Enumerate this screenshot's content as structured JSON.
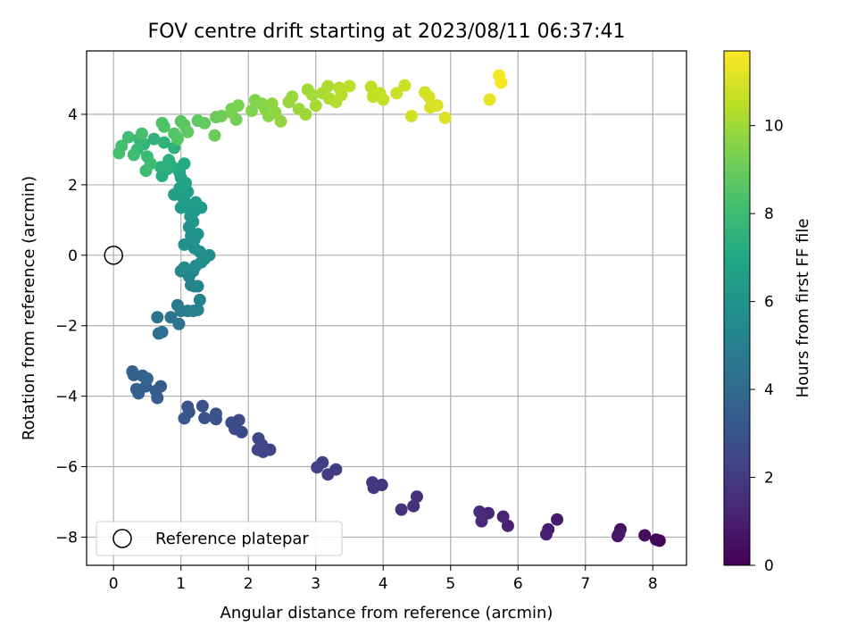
{
  "chart_data": {
    "type": "scatter",
    "title": "FOV centre drift starting at 2023/08/11 06:37:41",
    "xlabel": "Angular distance from reference (arcmin)",
    "ylabel": "Rotation from reference (arcmin)",
    "xlim": [
      -0.4,
      8.5
    ],
    "ylim": [
      -8.8,
      5.8
    ],
    "xticks": [
      0,
      1,
      2,
      3,
      4,
      5,
      6,
      7,
      8
    ],
    "yticks": [
      -8,
      -6,
      -4,
      -2,
      0,
      2,
      4
    ],
    "grid": true,
    "legend": {
      "placement": "lower-left",
      "entries": [
        "Reference platepar"
      ]
    },
    "reference_point": {
      "x": 0,
      "y": 0
    },
    "colorbar": {
      "label": "Hours from first FF file",
      "range": [
        0,
        11.7
      ],
      "ticks": [
        0,
        2,
        4,
        6,
        8,
        10
      ],
      "colormap": "viridis"
    },
    "points": [
      [
        8.1,
        -8.1,
        0.1
      ],
      [
        8.05,
        -8.07,
        0.2
      ],
      [
        7.88,
        -7.95,
        0.35
      ],
      [
        7.52,
        -7.78,
        0.5
      ],
      [
        7.48,
        -7.97,
        0.6
      ],
      [
        7.5,
        -7.9,
        0.7
      ],
      [
        6.58,
        -7.5,
        0.85
      ],
      [
        6.45,
        -7.78,
        0.95
      ],
      [
        6.42,
        -7.92,
        1.0
      ],
      [
        5.85,
        -7.68,
        1.15
      ],
      [
        5.78,
        -7.42,
        1.2
      ],
      [
        5.56,
        -7.32,
        1.3
      ],
      [
        5.46,
        -7.55,
        1.4
      ],
      [
        5.43,
        -7.28,
        1.45
      ],
      [
        4.5,
        -6.85,
        1.6
      ],
      [
        4.45,
        -7.12,
        1.65
      ],
      [
        4.27,
        -7.22,
        1.7
      ],
      [
        3.98,
        -6.52,
        1.8
      ],
      [
        3.86,
        -6.6,
        1.85
      ],
      [
        3.84,
        -6.45,
        1.9
      ],
      [
        3.3,
        -6.08,
        2.0
      ],
      [
        3.18,
        -6.22,
        2.05
      ],
      [
        3.1,
        -5.88,
        2.1
      ],
      [
        3.02,
        -6.02,
        2.15
      ],
      [
        2.32,
        -5.52,
        2.3
      ],
      [
        2.22,
        -5.58,
        2.35
      ],
      [
        2.14,
        -5.52,
        2.4
      ],
      [
        2.15,
        -5.2,
        2.45
      ],
      [
        2.2,
        -5.38,
        2.5
      ],
      [
        1.9,
        -5.02,
        2.6
      ],
      [
        1.8,
        -4.93,
        2.65
      ],
      [
        1.86,
        -4.68,
        2.7
      ],
      [
        1.75,
        -4.75,
        2.75
      ],
      [
        1.52,
        -4.65,
        2.85
      ],
      [
        1.35,
        -4.62,
        2.9
      ],
      [
        1.32,
        -4.28,
        2.95
      ],
      [
        1.52,
        -4.5,
        3.0
      ],
      [
        1.1,
        -4.3,
        3.05
      ],
      [
        1.12,
        -4.45,
        3.1
      ],
      [
        1.05,
        -4.63,
        3.15
      ],
      [
        0.7,
        -3.72,
        3.3
      ],
      [
        0.65,
        -4.05,
        3.35
      ],
      [
        0.63,
        -3.85,
        3.4
      ],
      [
        0.48,
        -3.72,
        3.45
      ],
      [
        0.43,
        -3.42,
        3.5
      ],
      [
        0.37,
        -3.92,
        3.55
      ],
      [
        0.34,
        -3.8,
        3.6
      ],
      [
        0.3,
        -3.4,
        3.65
      ],
      [
        0.28,
        -3.3,
        3.7
      ],
      [
        0.5,
        -3.5,
        3.75
      ],
      [
        0.72,
        -2.18,
        4.2
      ],
      [
        0.67,
        -2.22,
        4.3
      ],
      [
        0.65,
        -1.76,
        4.4
      ],
      [
        0.85,
        -1.76,
        4.5
      ],
      [
        0.97,
        -1.95,
        4.6
      ],
      [
        0.95,
        -1.42,
        4.7
      ],
      [
        1.0,
        -1.58,
        4.8
      ],
      [
        1.1,
        -1.58,
        4.9
      ],
      [
        1.18,
        -1.58,
        5.0
      ],
      [
        1.25,
        -1.55,
        5.05
      ],
      [
        1.28,
        -1.27,
        5.1
      ],
      [
        1.2,
        -0.88,
        5.2
      ],
      [
        1.15,
        -0.85,
        5.25
      ],
      [
        1.25,
        -0.88,
        5.3
      ],
      [
        1.12,
        -0.6,
        5.35
      ],
      [
        1.18,
        -0.45,
        5.4
      ],
      [
        1.0,
        -0.45,
        5.45
      ],
      [
        1.05,
        -0.35,
        5.5
      ],
      [
        1.22,
        -0.3,
        5.55
      ],
      [
        1.3,
        -0.2,
        5.6
      ],
      [
        1.35,
        -0.1,
        5.65
      ],
      [
        1.42,
        0.0,
        5.7
      ],
      [
        1.28,
        0.1,
        5.75
      ],
      [
        1.2,
        0.2,
        5.8
      ],
      [
        1.05,
        0.3,
        5.85
      ],
      [
        1.2,
        0.45,
        5.9
      ],
      [
        1.15,
        0.55,
        5.95
      ],
      [
        1.25,
        0.6,
        6.0
      ],
      [
        1.12,
        0.8,
        6.05
      ],
      [
        1.18,
        0.95,
        6.1
      ],
      [
        1.14,
        1.1,
        6.15
      ],
      [
        1.2,
        1.25,
        6.2
      ],
      [
        1.1,
        1.35,
        6.25
      ],
      [
        1.0,
        1.35,
        6.3
      ],
      [
        1.3,
        1.35,
        6.35
      ],
      [
        1.22,
        1.5,
        6.4
      ],
      [
        1.05,
        1.55,
        6.45
      ],
      [
        1.0,
        1.7,
        6.5
      ],
      [
        0.9,
        1.72,
        6.55
      ],
      [
        1.1,
        1.8,
        6.6
      ],
      [
        0.98,
        1.9,
        6.65
      ],
      [
        1.07,
        2.05,
        6.7
      ],
      [
        1.0,
        2.2,
        6.8
      ],
      [
        0.98,
        2.35,
        6.9
      ],
      [
        0.95,
        2.45,
        7.0
      ],
      [
        1.05,
        2.6,
        7.1
      ],
      [
        0.72,
        2.25,
        7.15
      ],
      [
        0.8,
        2.45,
        7.2
      ],
      [
        0.85,
        2.55,
        7.3
      ],
      [
        0.7,
        2.5,
        7.35
      ],
      [
        0.82,
        2.7,
        7.4
      ],
      [
        0.9,
        3.05,
        7.5
      ],
      [
        0.75,
        3.2,
        7.55
      ],
      [
        0.6,
        3.3,
        7.6
      ],
      [
        0.45,
        3.15,
        7.7
      ],
      [
        0.38,
        3.3,
        7.75
      ],
      [
        0.35,
        3.0,
        7.8
      ],
      [
        0.5,
        2.8,
        7.9
      ],
      [
        0.55,
        2.6,
        7.95
      ],
      [
        0.48,
        2.4,
        8.0
      ],
      [
        0.3,
        2.85,
        8.05
      ],
      [
        0.22,
        3.35,
        8.1
      ],
      [
        0.12,
        3.1,
        8.15
      ],
      [
        0.08,
        2.9,
        8.2
      ],
      [
        0.42,
        3.45,
        8.25
      ],
      [
        0.72,
        3.75,
        8.4
      ],
      [
        0.75,
        3.65,
        8.45
      ],
      [
        0.9,
        3.45,
        8.5
      ],
      [
        0.95,
        3.3,
        8.55
      ],
      [
        1.0,
        3.8,
        8.65
      ],
      [
        1.05,
        3.7,
        8.7
      ],
      [
        1.1,
        3.5,
        8.75
      ],
      [
        1.25,
        3.82,
        8.8
      ],
      [
        1.35,
        3.75,
        8.9
      ],
      [
        1.52,
        3.92,
        9.0
      ],
      [
        1.5,
        3.4,
        9.05
      ],
      [
        1.6,
        3.95,
        9.1
      ],
      [
        1.75,
        4.05,
        9.2
      ],
      [
        1.82,
        3.85,
        9.25
      ],
      [
        1.75,
        4.15,
        9.3
      ],
      [
        1.85,
        4.25,
        9.35
      ],
      [
        2.05,
        4.1,
        9.45
      ],
      [
        2.1,
        4.4,
        9.5
      ],
      [
        2.2,
        4.3,
        9.55
      ],
      [
        2.25,
        4.15,
        9.6
      ],
      [
        2.3,
        3.95,
        9.65
      ],
      [
        2.35,
        4.3,
        9.7
      ],
      [
        2.4,
        4.05,
        9.75
      ],
      [
        2.48,
        3.8,
        9.8
      ],
      [
        2.6,
        4.35,
        9.85
      ],
      [
        2.65,
        4.5,
        9.9
      ],
      [
        2.75,
        4.15,
        9.95
      ],
      [
        2.85,
        4.0,
        10.0
      ],
      [
        2.88,
        4.7,
        10.05
      ],
      [
        2.95,
        4.55,
        10.1
      ],
      [
        3.0,
        4.25,
        10.15
      ],
      [
        3.1,
        4.6,
        10.2
      ],
      [
        3.18,
        4.8,
        10.25
      ],
      [
        3.2,
        4.45,
        10.3
      ],
      [
        3.3,
        4.35,
        10.35
      ],
      [
        3.35,
        4.75,
        10.4
      ],
      [
        3.38,
        4.55,
        10.45
      ],
      [
        3.5,
        4.8,
        10.5
      ],
      [
        3.82,
        4.78,
        10.55
      ],
      [
        3.85,
        4.5,
        10.6
      ],
      [
        3.95,
        4.6,
        10.65
      ],
      [
        4.0,
        4.42,
        10.7
      ],
      [
        4.2,
        4.6,
        10.75
      ],
      [
        4.32,
        4.82,
        10.8
      ],
      [
        4.42,
        3.95,
        10.85
      ],
      [
        4.62,
        4.62,
        10.9
      ],
      [
        4.68,
        4.5,
        10.95
      ],
      [
        4.7,
        4.2,
        11.0
      ],
      [
        4.8,
        4.25,
        11.05
      ],
      [
        4.92,
        3.9,
        11.1
      ],
      [
        5.58,
        4.42,
        11.3
      ],
      [
        5.72,
        5.1,
        11.5
      ],
      [
        5.75,
        4.9,
        11.6
      ]
    ]
  }
}
